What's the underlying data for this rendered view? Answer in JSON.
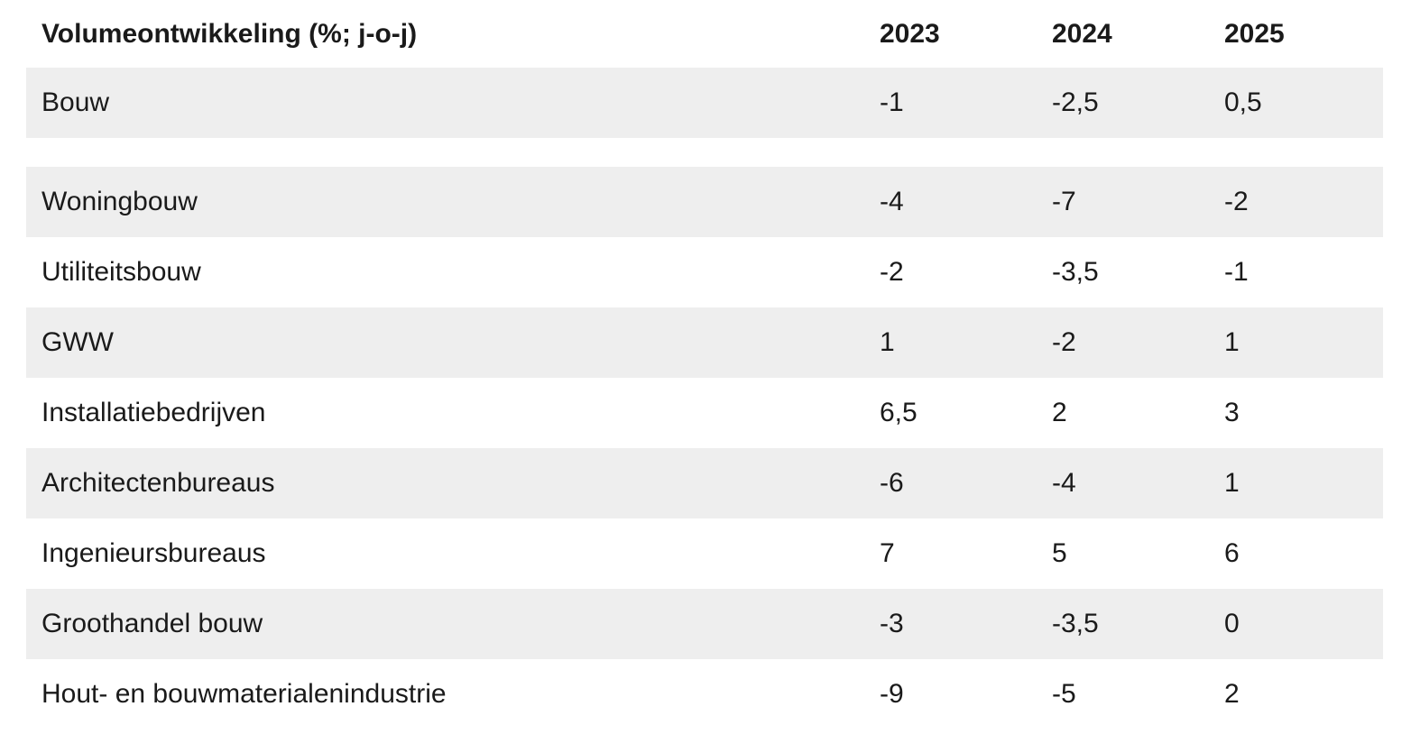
{
  "table": {
    "header": [
      "Volumeontwikkeling (%; j-o-j)",
      "2023",
      "2024",
      "2025"
    ],
    "rows": [
      [
        "Bouw",
        "-1",
        "-2,5",
        "0,5"
      ],
      [
        "Woningbouw",
        "-4",
        "-7",
        "-2"
      ],
      [
        "Utiliteitsbouw",
        "-2",
        "-3,5",
        "-1"
      ],
      [
        "GWW",
        "1",
        "-2",
        "1"
      ],
      [
        "Installatiebedrijven",
        "6,5",
        "2",
        "3"
      ],
      [
        "Architectenbureaus",
        "-6",
        "-4",
        "1"
      ],
      [
        "Ingenieursbureaus",
        "7",
        "5",
        "6"
      ],
      [
        "Groothandel bouw",
        "-3",
        "-3,5",
        "0"
      ],
      [
        "Hout- en bouwmaterialenindustrie",
        "-9",
        "-5",
        "2"
      ]
    ]
  }
}
